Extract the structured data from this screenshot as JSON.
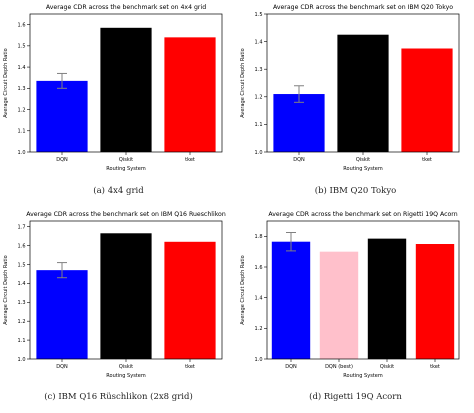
{
  "captions": [
    "(a) 4x4 grid",
    "(b) IBM Q20 Tokyo",
    "(c) IBM Q16 Rüschlikon (2x8 grid)",
    "(d) Rigetti 19Q Acorn"
  ],
  "chart_data": [
    {
      "type": "bar",
      "title": "Average CDR across the benchmark set on 4x4 grid",
      "xlabel": "Routing System",
      "ylabel": "Average Circuit Depth Ratio",
      "categories": [
        "DQN",
        "Qiskit",
        "tket"
      ],
      "values": [
        1.335,
        1.585,
        1.54
      ],
      "errors": [
        0.035,
        0,
        0
      ],
      "colors": [
        "#0000ff",
        "#000000",
        "#ff0000"
      ],
      "ylim": [
        1.0,
        1.65
      ],
      "yticks": [
        "1.0",
        "1.1",
        "1.2",
        "1.3",
        "1.4",
        "1.5",
        "1.6"
      ],
      "grid": false
    },
    {
      "type": "bar",
      "title": "Average CDR across the benchmark set on IBM Q20 Tokyo",
      "xlabel": "Routing System",
      "ylabel": "Average Circuit Depth Ratio",
      "categories": [
        "DQN",
        "Qiskit",
        "tket"
      ],
      "values": [
        1.21,
        1.425,
        1.375
      ],
      "errors": [
        0.03,
        0,
        0
      ],
      "colors": [
        "#0000ff",
        "#000000",
        "#ff0000"
      ],
      "ylim": [
        1.0,
        1.5
      ],
      "yticks": [
        "1.0",
        "1.1",
        "1.2",
        "1.3",
        "1.4",
        "1.5"
      ],
      "grid": false
    },
    {
      "type": "bar",
      "title": "Average CDR across the benchmark set on IBM Q16 Rueschlikon",
      "xlabel": "Routing System",
      "ylabel": "Average Circuit Depth Ratio",
      "categories": [
        "DQN",
        "Qiskit",
        "tket"
      ],
      "values": [
        1.47,
        1.665,
        1.62
      ],
      "errors": [
        0.04,
        0,
        0
      ],
      "colors": [
        "#0000ff",
        "#000000",
        "#ff0000"
      ],
      "ylim": [
        1.0,
        1.73
      ],
      "yticks": [
        "1.0",
        "1.1",
        "1.2",
        "1.3",
        "1.4",
        "1.5",
        "1.6",
        "1.7"
      ],
      "grid": false
    },
    {
      "type": "bar",
      "title": "Average CDR across the benchmark set on Rigetti 19Q Acorn",
      "xlabel": "Routing System",
      "ylabel": "Average Circuit Depth Ratio",
      "categories": [
        "DQN",
        "DQN (best)",
        "Qiskit",
        "tket"
      ],
      "values": [
        1.765,
        1.7,
        1.785,
        1.75
      ],
      "errors": [
        0.06,
        0,
        0,
        0
      ],
      "colors": [
        "#0000ff",
        "#ffc0cb",
        "#000000",
        "#ff0000"
      ],
      "ylim": [
        1.0,
        1.9
      ],
      "yticks": [
        "1.0",
        "1.2",
        "1.4",
        "1.6",
        "1.8"
      ],
      "grid": false
    }
  ]
}
